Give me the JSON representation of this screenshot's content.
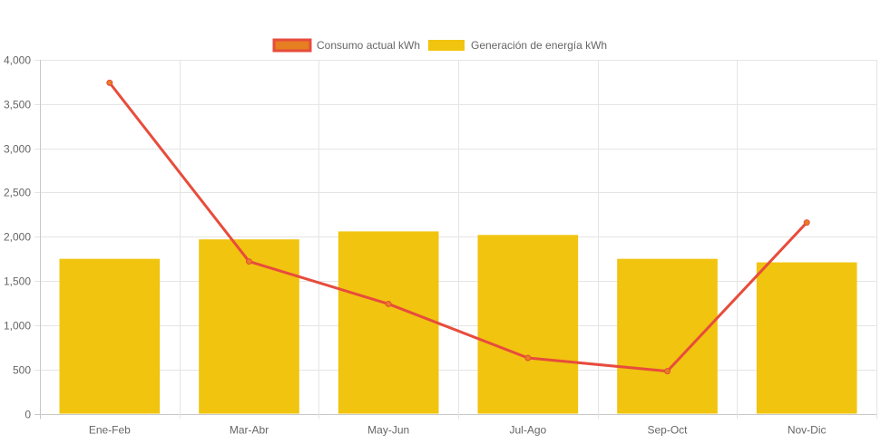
{
  "chart_data": {
    "type": "bar",
    "categories": [
      "Ene-Feb",
      "Mar-Abr",
      "May-Jun",
      "Jul-Ago",
      "Sep-Oct",
      "Nov-Dic"
    ],
    "series": [
      {
        "name": "Consumo actual kWh",
        "type": "line",
        "values": [
          3740,
          1720,
          1240,
          630,
          480,
          2160
        ],
        "color": "#e74c3c",
        "fill": "#e67e22"
      },
      {
        "name": "Generación de energía kWh",
        "type": "bar",
        "values": [
          1750,
          1970,
          2060,
          2020,
          1750,
          1710
        ],
        "color": "#f1c40f"
      }
    ],
    "ylim": [
      0,
      4000
    ],
    "yticks": [
      "0",
      "500",
      "1,000",
      "1,500",
      "2,000",
      "2,500",
      "3,000",
      "3,500",
      "4,000"
    ],
    "grid": true,
    "legend": "top"
  }
}
